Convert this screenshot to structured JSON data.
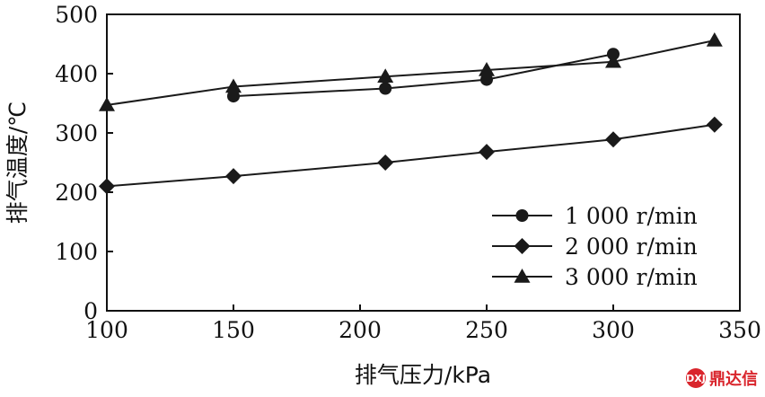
{
  "chart_data": {
    "type": "line",
    "xlabel": "排气压力/kPa",
    "ylabel": "排气温度/℃",
    "xlim": [
      100,
      350
    ],
    "ylim": [
      0,
      500
    ],
    "xticks": [
      100,
      150,
      200,
      250,
      300,
      350
    ],
    "yticks": [
      0,
      100,
      200,
      300,
      400,
      500
    ],
    "grid": false,
    "legend_position": "bottom-right",
    "series": [
      {
        "name": "1 000 r/min",
        "marker": "circle",
        "x": [
          150,
          210,
          250,
          300
        ],
        "y": [
          362,
          375,
          390,
          433
        ]
      },
      {
        "name": "2 000 r/min",
        "marker": "diamond",
        "x": [
          100,
          150,
          210,
          250,
          300,
          340
        ],
        "y": [
          210,
          227,
          250,
          268,
          289,
          314
        ]
      },
      {
        "name": "3 000 r/min",
        "marker": "triangle",
        "x": [
          100,
          150,
          210,
          250,
          300,
          340
        ],
        "y": [
          347,
          378,
          395,
          406,
          420,
          456
        ]
      }
    ]
  },
  "watermark": {
    "badge": "DXJ",
    "text": "鼎达信"
  }
}
